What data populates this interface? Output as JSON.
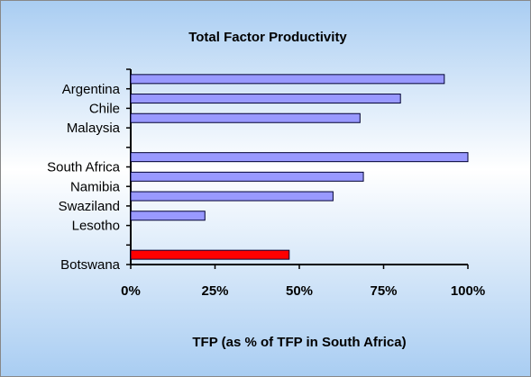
{
  "chart_data": {
    "type": "barh",
    "title": "Total Factor Productivity",
    "x_label": "TFP (as % of TFP in South Africa)",
    "categories": [
      "Argentina",
      "Chile",
      "Malaysia",
      null,
      "South Africa",
      "Namibia",
      "Swaziland",
      "Lesotho",
      null,
      "Botswana"
    ],
    "values": [
      93,
      80,
      68,
      null,
      100,
      69,
      60,
      22,
      null,
      47
    ],
    "colors": [
      "#9999ff",
      "#9999ff",
      "#9999ff",
      null,
      "#9999ff",
      "#9999ff",
      "#9999ff",
      "#9999ff",
      null,
      "#ff0000"
    ],
    "xlim": [
      0,
      100
    ],
    "xticks": [
      {
        "value": 0,
        "label": "0%"
      },
      {
        "value": 25,
        "label": "25%"
      },
      {
        "value": 50,
        "label": "50%"
      },
      {
        "value": 75,
        "label": "75%"
      },
      {
        "value": 100,
        "label": "100%"
      }
    ],
    "grid": false
  }
}
